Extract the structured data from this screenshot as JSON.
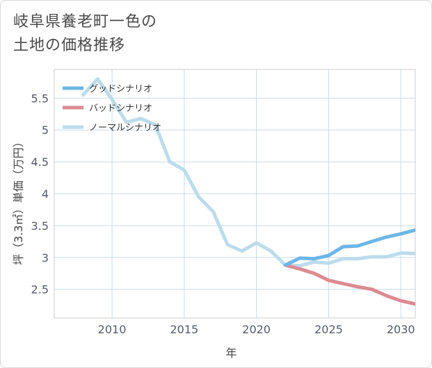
{
  "title_lines": [
    "岐阜県養老町一色の",
    "土地の価格推移"
  ],
  "chart_data": {
    "type": "line",
    "xlabel": "年",
    "ylabel": "坪（3.3㎡）単価（万円）",
    "xlim": [
      2006,
      2031
    ],
    "ylim": [
      2.05,
      5.95
    ],
    "x_ticks": [
      2010,
      2015,
      2020,
      2025,
      2030
    ],
    "y_ticks": [
      2.5,
      3,
      3.5,
      4,
      4.5,
      5,
      5.5
    ],
    "y_tick_labels": [
      "2.5",
      "3",
      "3.5",
      "4",
      "4.5",
      "5",
      "5.5"
    ],
    "grid": true,
    "legend_position": "top-left",
    "series": [
      {
        "name": "グッドシナリオ",
        "color": "#6cb6e8",
        "x": [
          2022,
          2023,
          2024,
          2025,
          2026,
          2027,
          2028,
          2029,
          2030,
          2031
        ],
        "y": [
          2.88,
          2.99,
          2.98,
          3.03,
          3.17,
          3.18,
          3.25,
          3.32,
          3.37,
          3.43
        ]
      },
      {
        "name": "バッドシナリオ",
        "color": "#dd8a92",
        "x": [
          2022,
          2023,
          2024,
          2025,
          2026,
          2027,
          2028,
          2029,
          2030,
          2031
        ],
        "y": [
          2.88,
          2.82,
          2.75,
          2.64,
          2.59,
          2.54,
          2.5,
          2.4,
          2.32,
          2.27
        ]
      },
      {
        "name": "ノーマルシナリオ",
        "color": "#bcdcec",
        "x": [
          2008,
          2009,
          2010,
          2011,
          2012,
          2013,
          2014,
          2015,
          2016,
          2017,
          2018,
          2019,
          2020,
          2021,
          2022,
          2023,
          2024,
          2025,
          2026,
          2027,
          2028,
          2029,
          2030,
          2031
        ],
        "y": [
          5.55,
          5.8,
          5.48,
          5.12,
          5.18,
          5.08,
          4.5,
          4.37,
          3.95,
          3.72,
          3.2,
          3.1,
          3.23,
          3.1,
          2.88,
          2.87,
          2.93,
          2.91,
          2.98,
          2.98,
          3.01,
          3.01,
          3.07,
          3.06
        ]
      }
    ]
  }
}
